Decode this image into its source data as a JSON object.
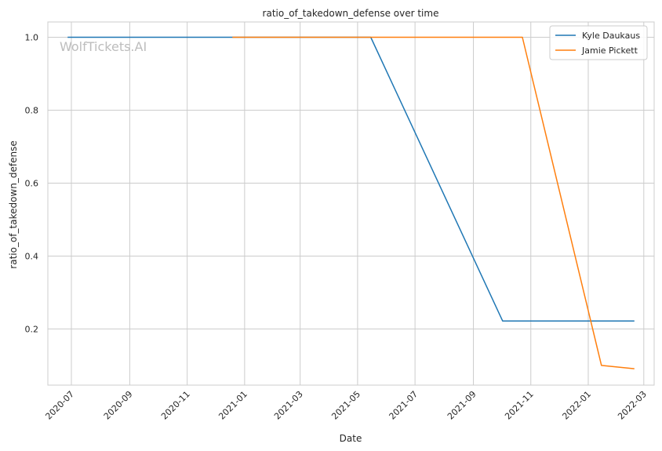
{
  "chart_data": {
    "type": "line",
    "title": "ratio_of_takedown_defense over time",
    "xlabel": "Date",
    "ylabel": "ratio_of_takedown_defense",
    "watermark": "WolfTickets.AI",
    "x_ticks": [
      "2020-07",
      "2020-09",
      "2020-11",
      "2021-01",
      "2021-03",
      "2021-05",
      "2021-07",
      "2021-09",
      "2021-11",
      "2022-01",
      "2022-03"
    ],
    "y_ticks": [
      "0.2",
      "0.4",
      "0.6",
      "0.8",
      "1.0"
    ],
    "x_range": [
      "2020-06-06",
      "2022-03-12"
    ],
    "y_range": [
      0.046,
      1.042
    ],
    "grid": true,
    "legend": "top-right",
    "series": [
      {
        "name": "Kyle Daukaus",
        "color": "#1f77b4",
        "points": [
          {
            "x": "2020-06-27",
            "y": 1.0
          },
          {
            "x": "2020-12-19",
            "y": 1.0
          },
          {
            "x": "2021-05-15",
            "y": 1.0
          },
          {
            "x": "2021-10-02",
            "y": 0.222
          },
          {
            "x": "2022-02-19",
            "y": 0.222
          }
        ]
      },
      {
        "name": "Jamie Pickett",
        "color": "#ff7f0e",
        "points": [
          {
            "x": "2020-12-19",
            "y": 1.0
          },
          {
            "x": "2021-10-23",
            "y": 1.0
          },
          {
            "x": "2022-01-15",
            "y": 0.1
          },
          {
            "x": "2022-02-19",
            "y": 0.091
          }
        ]
      }
    ]
  }
}
